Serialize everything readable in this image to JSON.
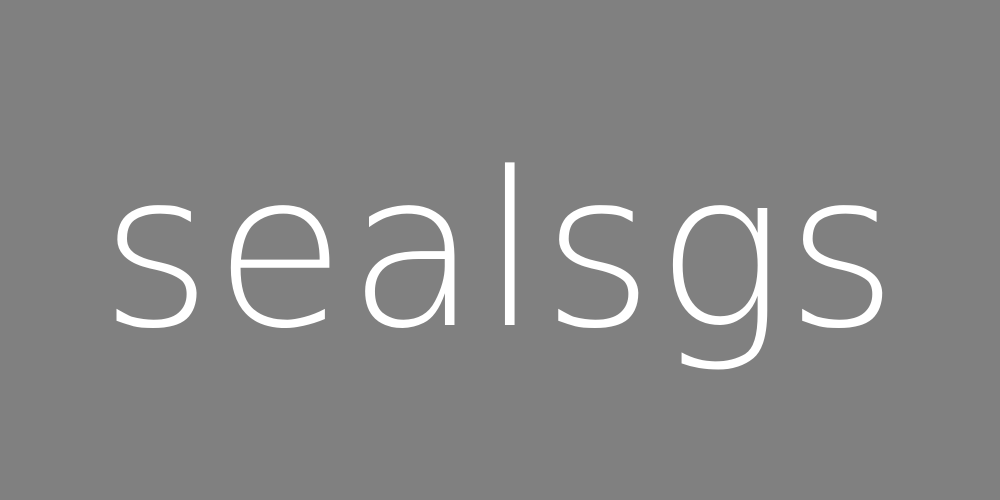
{
  "canvas": {
    "background_color": "#808080",
    "text_color": "#ffffff"
  },
  "word": "sealsgs"
}
